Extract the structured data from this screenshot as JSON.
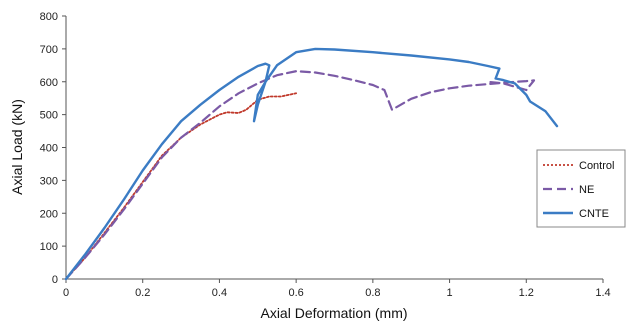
{
  "chart_data": {
    "type": "line",
    "title": "",
    "xlabel": "Axial Deformation (mm)",
    "ylabel": "Axial Load (kN)",
    "xlim": [
      0,
      1.4
    ],
    "ylim": [
      0,
      800
    ],
    "xticks": [
      0,
      0.2,
      0.4,
      0.6,
      0.8,
      1,
      1.2,
      1.4
    ],
    "xtick_labels": [
      "0",
      "0.2",
      "0.4",
      "0.6",
      "0.8",
      "1",
      "1.2",
      "1.4"
    ],
    "yticks": [
      0,
      100,
      200,
      300,
      400,
      500,
      600,
      700,
      800
    ],
    "ytick_labels": [
      "0",
      "100",
      "200",
      "300",
      "400",
      "500",
      "600",
      "700",
      "800"
    ],
    "grid": false,
    "legend_position": "right",
    "series": [
      {
        "name": "Control",
        "color": "#c0392b",
        "style": "dotted",
        "x": [
          0,
          0.05,
          0.1,
          0.15,
          0.2,
          0.25,
          0.3,
          0.35,
          0.4,
          0.42,
          0.45,
          0.47,
          0.5,
          0.53,
          0.56,
          0.6
        ],
        "y": [
          0,
          65,
          140,
          215,
          295,
          375,
          430,
          470,
          500,
          507,
          505,
          515,
          545,
          555,
          555,
          565
        ]
      },
      {
        "name": "NE",
        "color": "#7b5aa6",
        "style": "dashed",
        "x": [
          0,
          0.05,
          0.1,
          0.15,
          0.2,
          0.25,
          0.3,
          0.35,
          0.4,
          0.45,
          0.5,
          0.55,
          0.6,
          0.65,
          0.7,
          0.75,
          0.8,
          0.83,
          0.85,
          0.9,
          0.95,
          1.0,
          1.05,
          1.1,
          1.15,
          1.2,
          1.22,
          1.2,
          1.17,
          1.14,
          1.1
        ],
        "y": [
          0,
          65,
          135,
          210,
          290,
          370,
          430,
          475,
          525,
          565,
          595,
          620,
          632,
          628,
          618,
          605,
          590,
          575,
          515,
          548,
          568,
          580,
          588,
          593,
          598,
          602,
          604,
          575,
          585,
          595,
          600
        ]
      },
      {
        "name": "CNTE",
        "color": "#3b7cc4",
        "style": "solid",
        "x": [
          0,
          0.05,
          0.1,
          0.15,
          0.2,
          0.25,
          0.3,
          0.35,
          0.4,
          0.45,
          0.5,
          0.52,
          0.53,
          0.52,
          0.5,
          0.49,
          0.5,
          0.52,
          0.55,
          0.6,
          0.65,
          0.7,
          0.8,
          0.9,
          1.0,
          1.05,
          1.1,
          1.13,
          1.12,
          1.14,
          1.17,
          1.2,
          1.21,
          1.25,
          1.28
        ],
        "y": [
          0,
          75,
          155,
          240,
          330,
          410,
          480,
          530,
          575,
          615,
          648,
          655,
          650,
          600,
          530,
          480,
          560,
          600,
          650,
          690,
          700,
          698,
          690,
          680,
          668,
          660,
          648,
          640,
          610,
          605,
          595,
          560,
          540,
          510,
          465
        ]
      }
    ]
  }
}
